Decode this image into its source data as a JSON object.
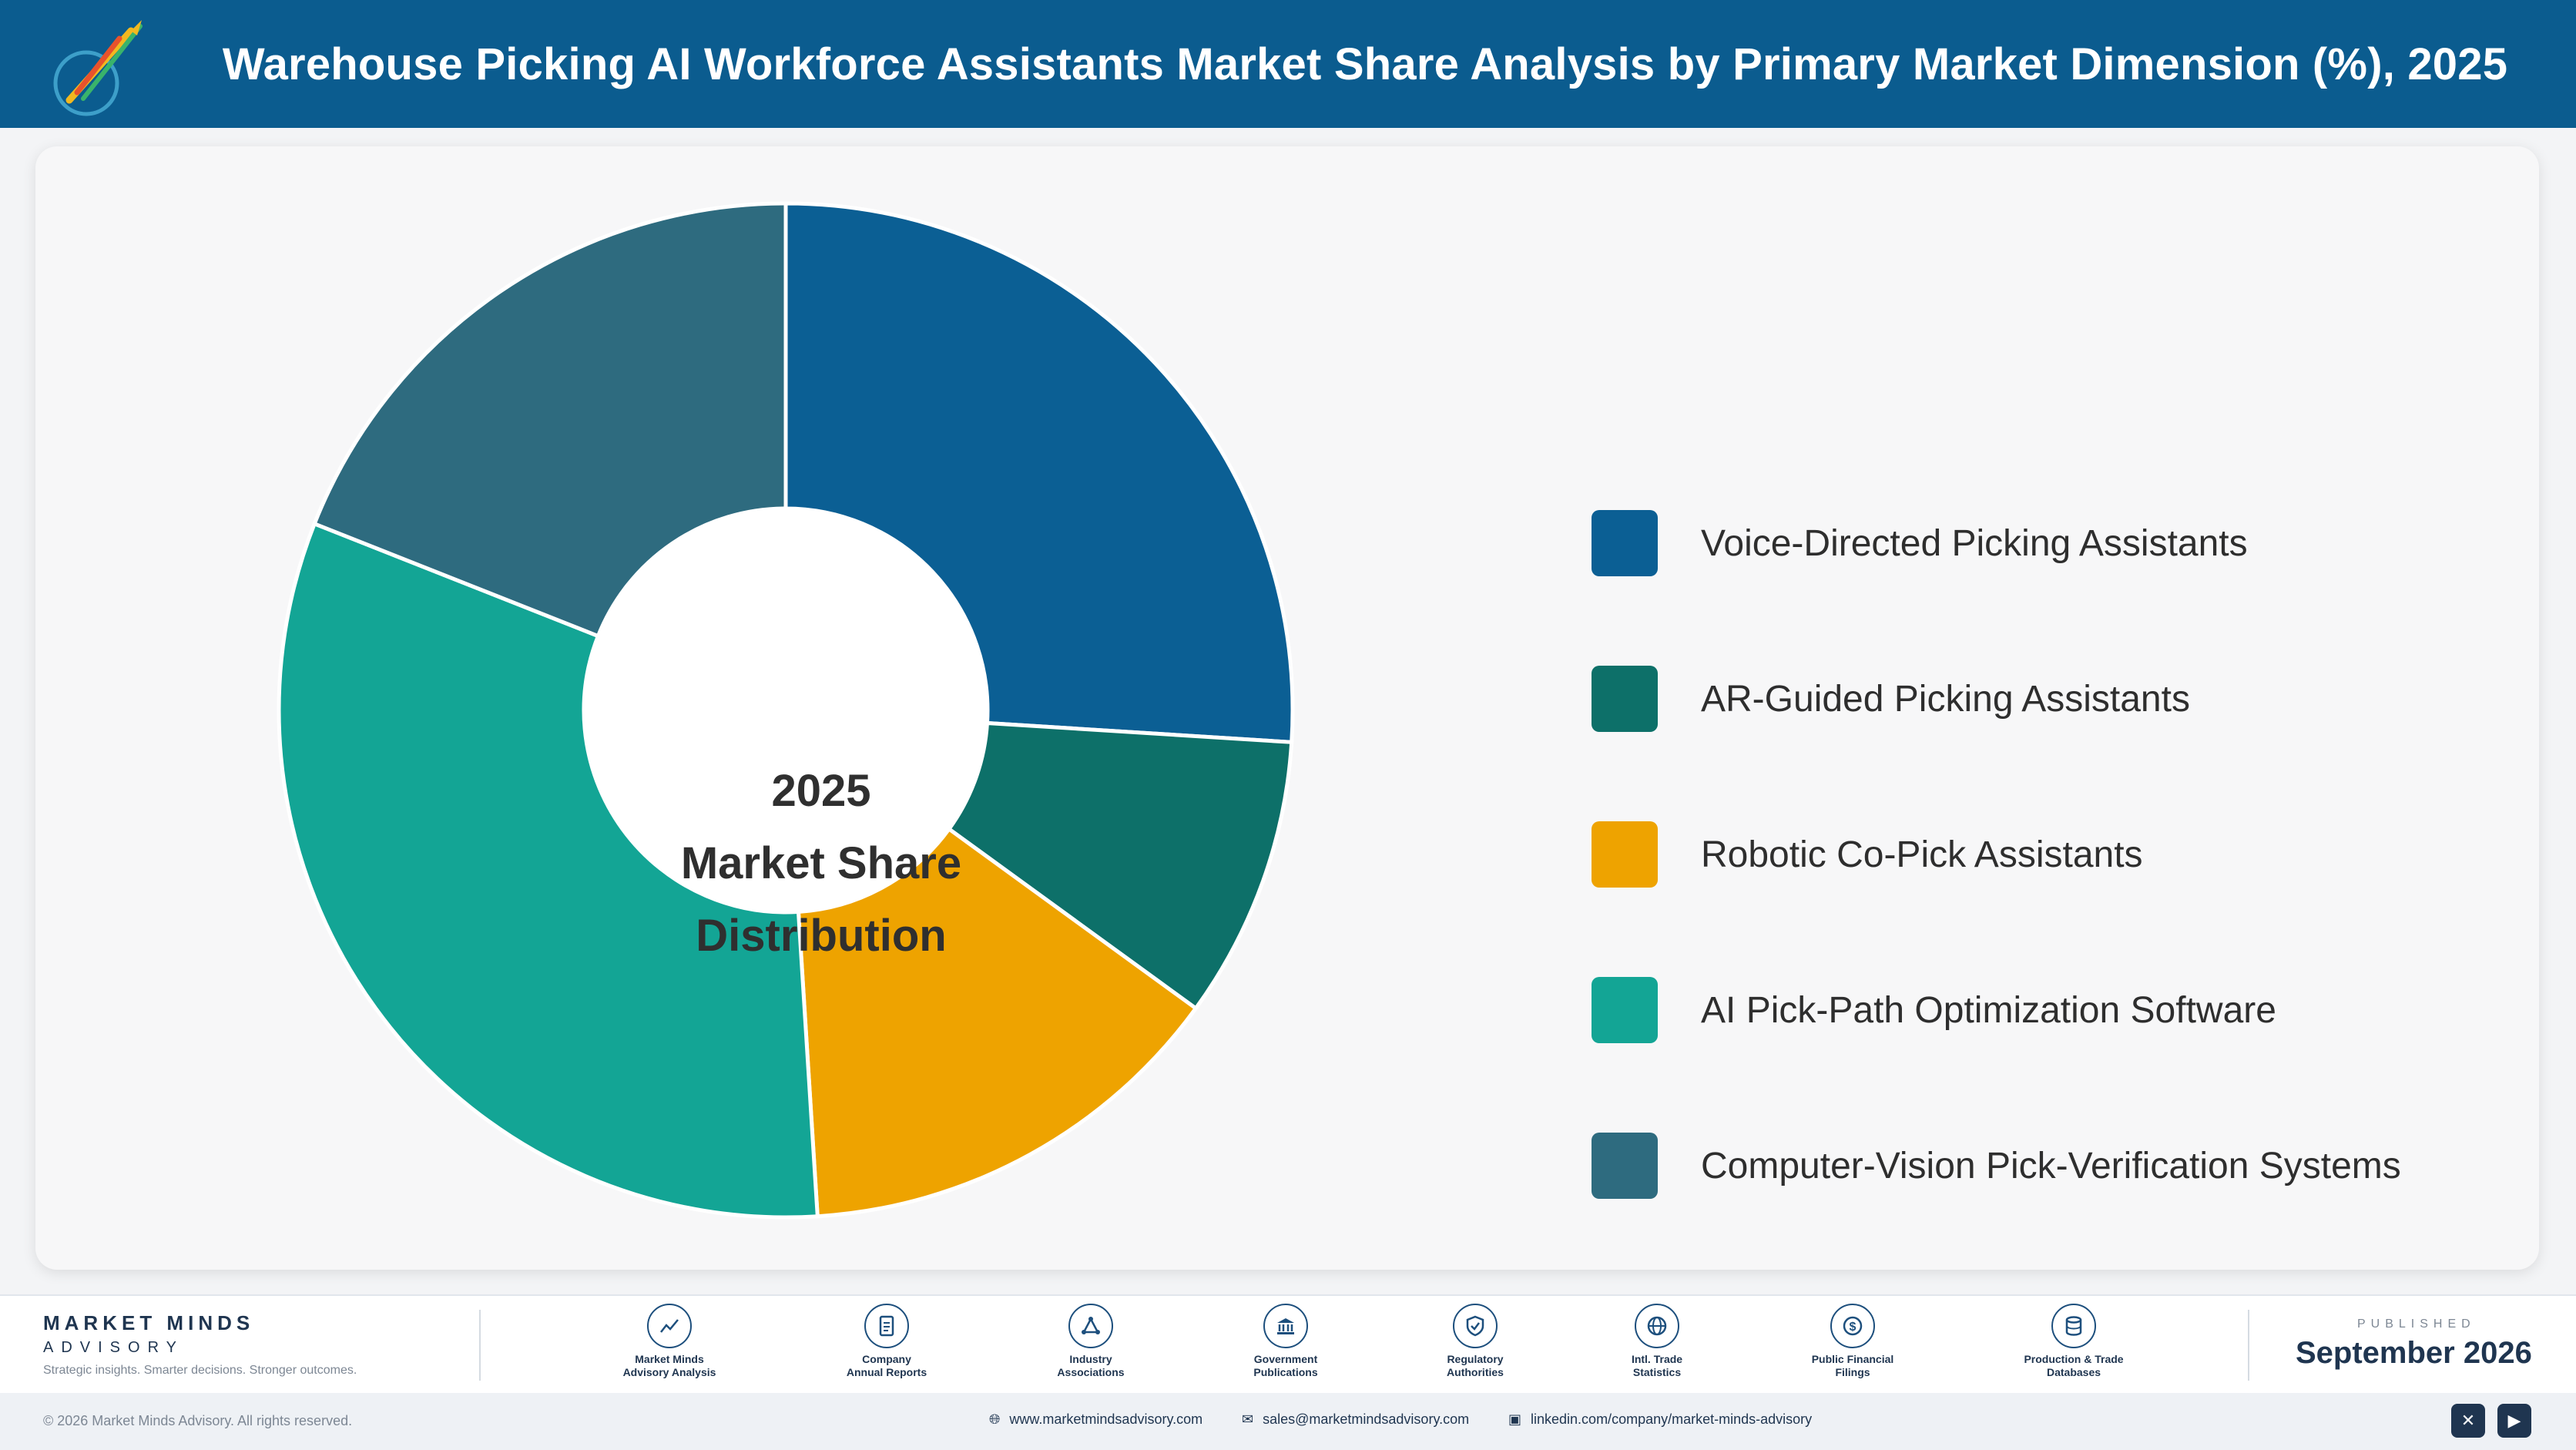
{
  "header": {
    "title": "Warehouse Picking AI Workforce Assistants Market Share Analysis by Primary Market Dimension (%), 2025"
  },
  "chart_data": {
    "type": "pie",
    "variant": "donut",
    "center_text": [
      "2025",
      "Market Share",
      "Distribution"
    ],
    "categories": [
      "Voice-Directed Picking Assistants",
      "AR-Guided Picking Assistants",
      "Robotic Co-Pick Assistants",
      "AI Pick-Path Optimization Software",
      "Computer-Vision Pick-Verification Systems"
    ],
    "values": [
      26,
      9,
      14,
      32,
      19
    ],
    "colors": [
      "#0b5f94",
      "#0d7069",
      "#eea300",
      "#13a595",
      "#2e6b7f"
    ],
    "legend_position": "right"
  },
  "footer": {
    "brand_name": "MARKET MINDS",
    "brand_sub": "ADVISORY",
    "brand_tagline": "Strategic insights. Smarter decisions. Stronger outcomes.",
    "sources": [
      {
        "label": "Market Minds\nAdvisory Analysis",
        "icon": "chart-line-icon"
      },
      {
        "label": "Company\nAnnual Reports",
        "icon": "document-icon"
      },
      {
        "label": "Industry\nAssociations",
        "icon": "network-icon"
      },
      {
        "label": "Government\nPublications",
        "icon": "government-icon"
      },
      {
        "label": "Regulatory\nAuthorities",
        "icon": "shield-icon"
      },
      {
        "label": "Intl. Trade\nStatistics",
        "icon": "globe-icon"
      },
      {
        "label": "Public Financial\nFilings",
        "icon": "dollar-icon"
      },
      {
        "label": "Production & Trade\nDatabases",
        "icon": "database-icon"
      }
    ],
    "published_label": "PUBLISHED",
    "published_date": "September 2026",
    "copyright": "© 2026 Market Minds Advisory. All rights reserved.",
    "website": "www.marketmindsadvisory.com",
    "email": "sales@marketmindsadvisory.com",
    "linkedin": "linkedin.com/company/market-minds-advisory"
  }
}
